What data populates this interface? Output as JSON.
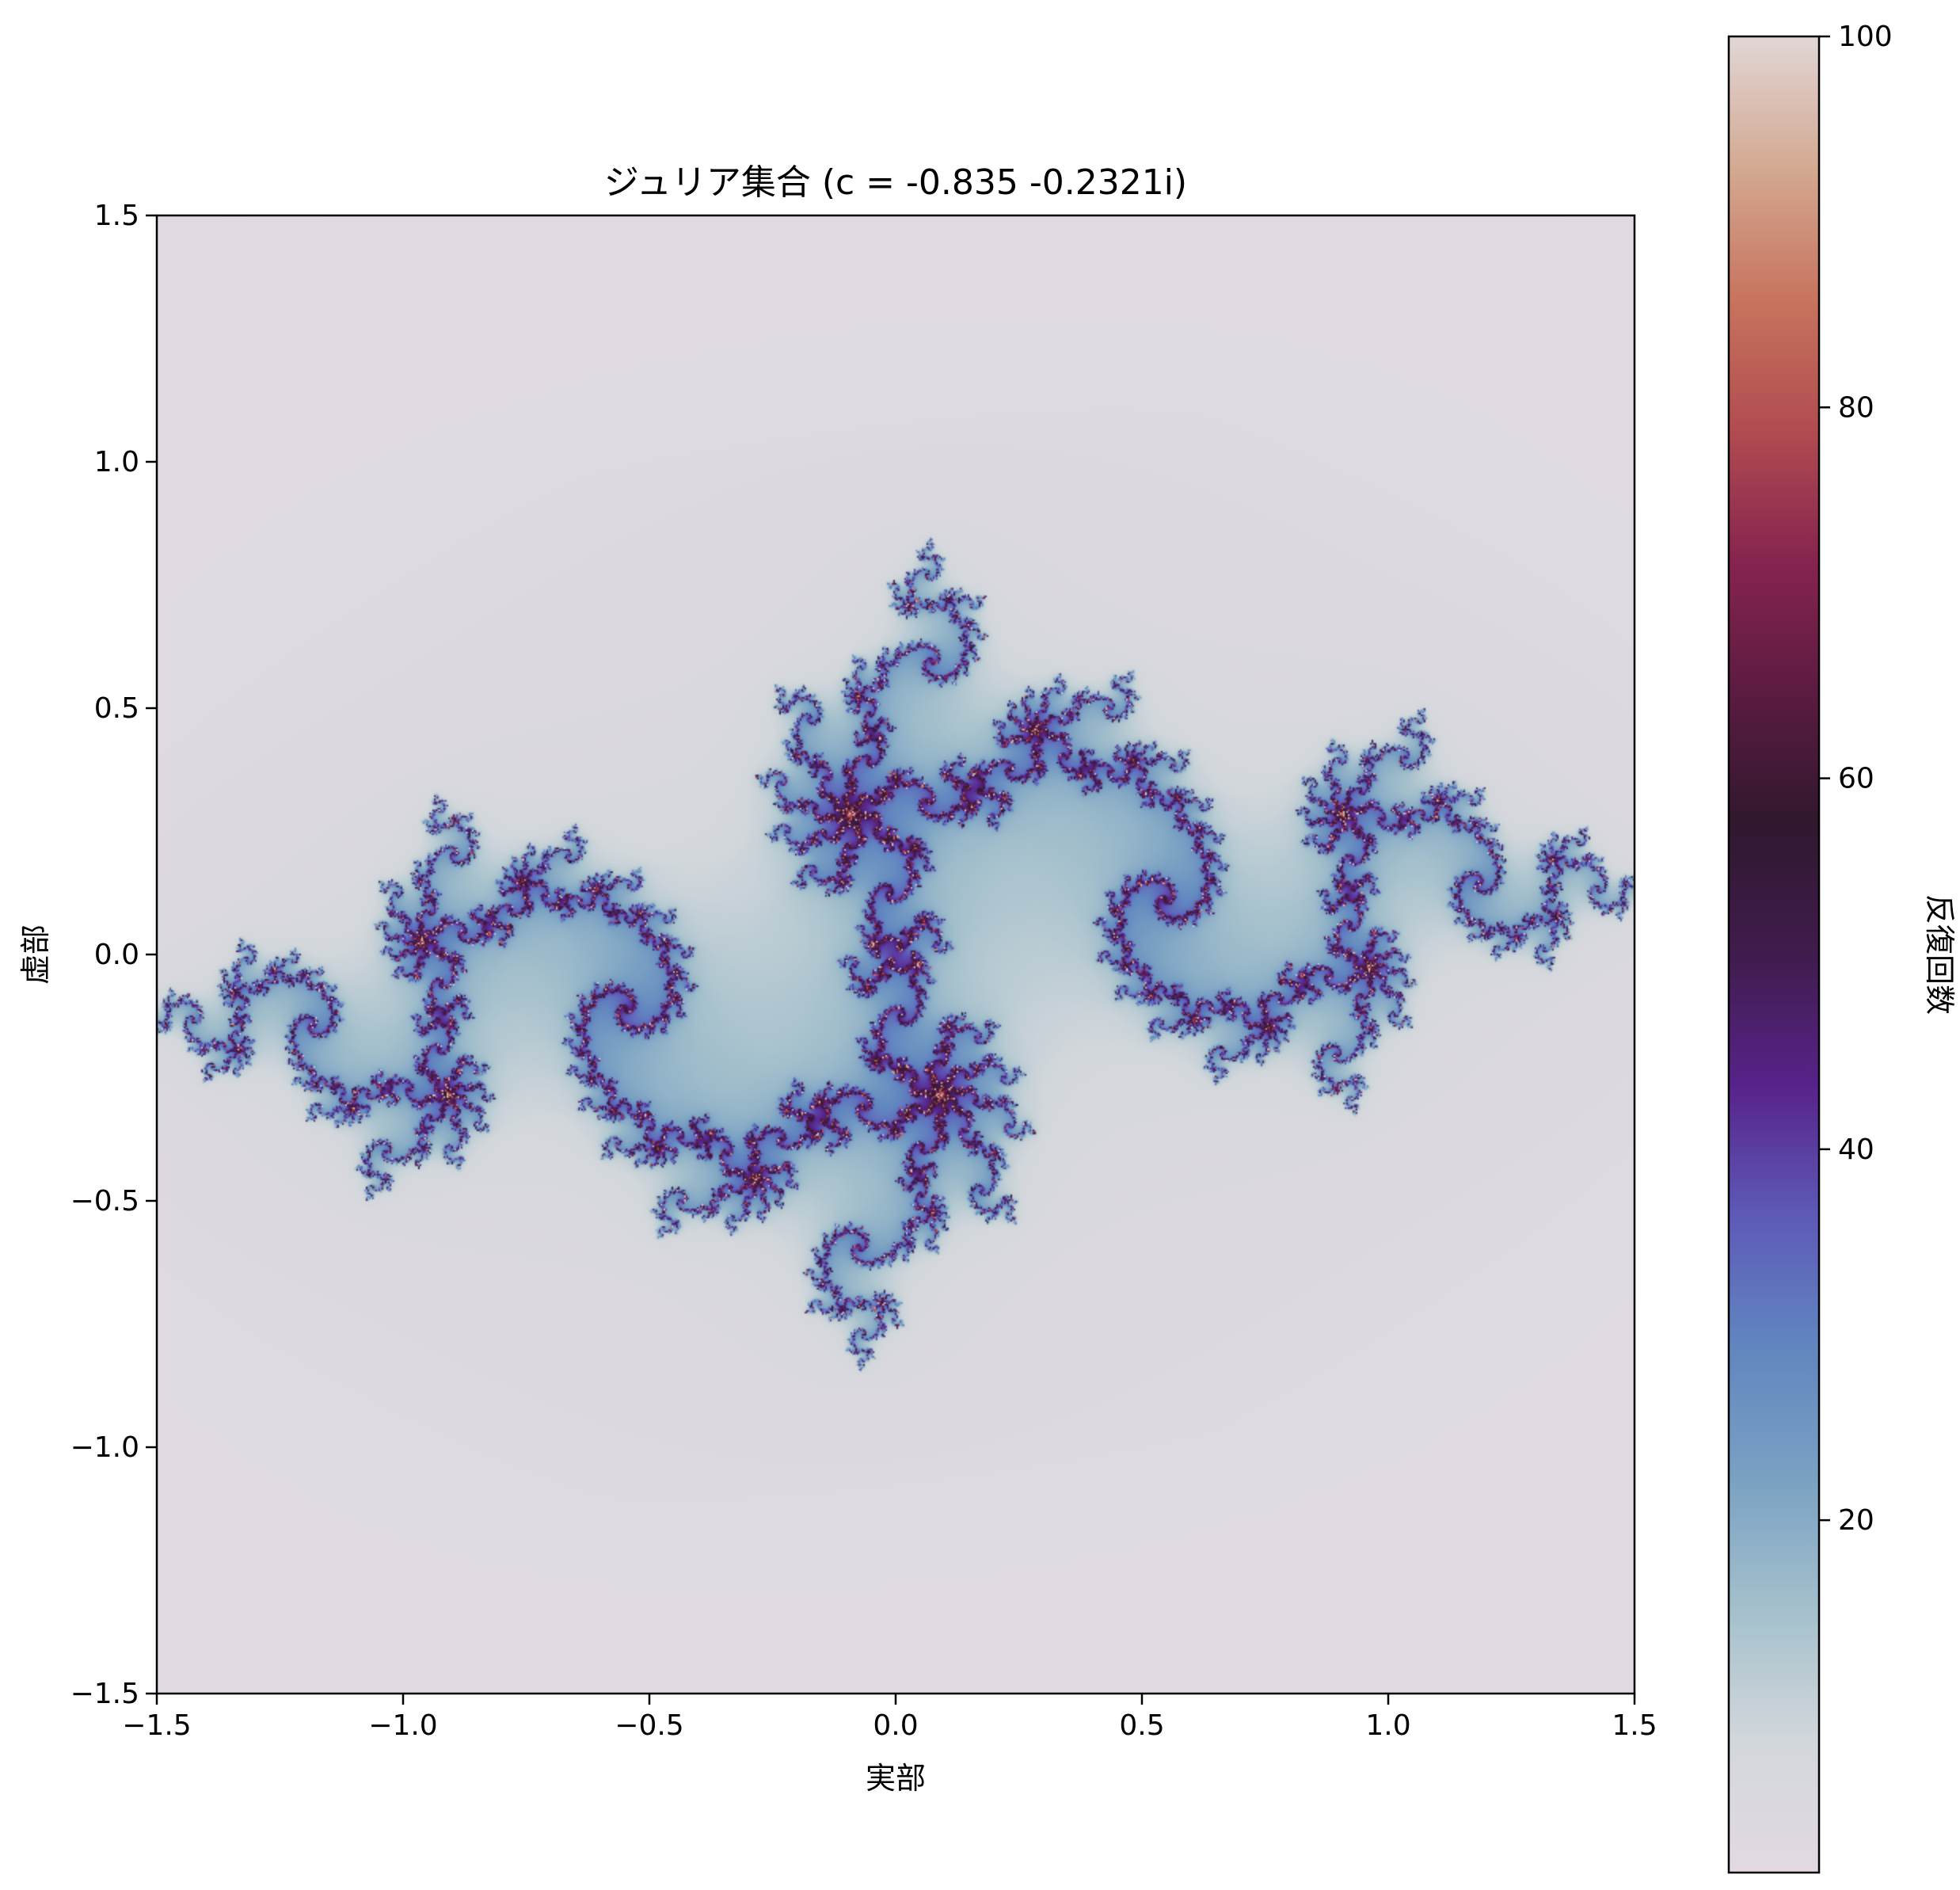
{
  "chart_data": {
    "type": "heatmap",
    "title": "ジュリア集合 (c = -0.835 -0.2321i)",
    "xlabel": "実部",
    "ylabel": "虚部",
    "xlim": [
      -1.5,
      1.5
    ],
    "ylim": [
      -1.5,
      1.5
    ],
    "c": {
      "re": -0.835,
      "im": -0.2321
    },
    "max_iter": 100,
    "x_ticks": [
      "−1.5",
      "−1.0",
      "−0.5",
      "0.0",
      "0.5",
      "1.0",
      "1.5"
    ],
    "y_ticks": [
      "1.5",
      "1.0",
      "0.5",
      "0.0",
      "−0.5",
      "−1.0",
      "−1.5"
    ],
    "colorbar": {
      "label": "反復回数",
      "range": [
        1,
        100
      ],
      "ticks": [
        "20",
        "40",
        "60",
        "80",
        "100"
      ],
      "colormap": "twilight (first half)",
      "stops": [
        "#e2d9e2",
        "#d2d7db",
        "#a4c0cc",
        "#7aa1c3",
        "#6186c0",
        "#5e5ab8",
        "#57238a",
        "#401c4d",
        "#30182e",
        "#5c1b42",
        "#86244f",
        "#b14c50",
        "#c8745e",
        "#d3a992",
        "#e1d6d5"
      ]
    }
  }
}
